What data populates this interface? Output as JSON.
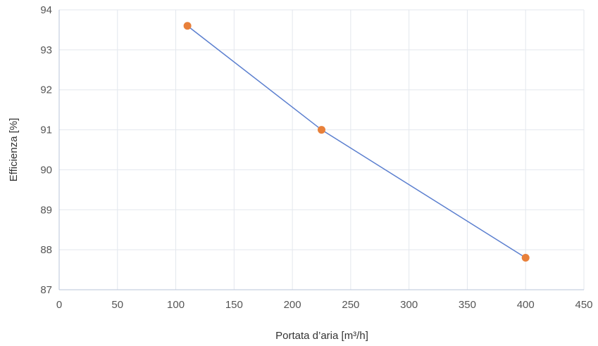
{
  "chart_data": {
    "type": "line",
    "xlabel": "Portata d’aria [m³/h]",
    "ylabel": "Efficienza [%]",
    "xlim": [
      0,
      450
    ],
    "ylim": [
      87,
      94
    ],
    "xticks": [
      "0",
      "50",
      "100",
      "150",
      "200",
      "250",
      "300",
      "350",
      "400",
      "450"
    ],
    "yticks": [
      "87",
      "88",
      "89",
      "90",
      "91",
      "92",
      "93",
      "94"
    ],
    "grid": true,
    "series": [
      {
        "x": [
          110,
          225,
          400
        ],
        "y": [
          93.6,
          91.0,
          87.8
        ]
      }
    ],
    "colors": {
      "line": "#5b7fcf",
      "marker": "#e8803a",
      "grid": "#e3e7ee",
      "axis": "#b8c4d9"
    }
  }
}
